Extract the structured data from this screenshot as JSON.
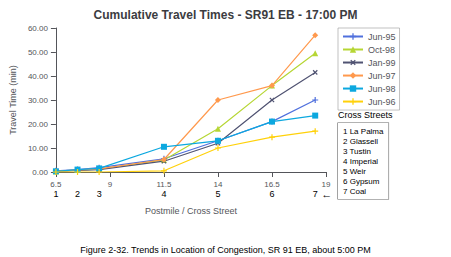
{
  "chart_data": {
    "type": "line",
    "title": "Cumulative Travel Times - SR91 EB - 17:00 PM",
    "xlabel": "Postmile / Cross Street",
    "ylabel": "Travel Time (min)",
    "caption": "Figure 2-32. Trends in Location of Congestion, SR 91 EB, about 5:00 PM",
    "xlim": [
      6.5,
      19
    ],
    "xticks": [
      6.5,
      9,
      11.5,
      14,
      16.5,
      19
    ],
    "ylim": [
      0,
      60
    ],
    "yticks": [
      {
        "value": 0,
        "label": "0.00"
      },
      {
        "value": 10,
        "label": "10.00"
      },
      {
        "value": 20,
        "label": "20.00"
      },
      {
        "value": 30,
        "label": "30.00"
      },
      {
        "value": 40,
        "label": "40.00"
      },
      {
        "value": 50,
        "label": "50.00"
      },
      {
        "value": 60,
        "label": "60.00"
      }
    ],
    "grid": false,
    "legend": "right",
    "cross_street_numbers": [
      {
        "x": 6.5,
        "text": "1"
      },
      {
        "x": 7.5,
        "text": "2"
      },
      {
        "x": 8.5,
        "text": "3"
      },
      {
        "x": 11.5,
        "text": "4"
      },
      {
        "x": 14.0,
        "text": "5"
      },
      {
        "x": 16.5,
        "text": "6"
      },
      {
        "x": 18.5,
        "text": "7"
      }
    ],
    "arrow": {
      "x": 18.5,
      "text": "←"
    },
    "cross_streets_title": "Cross Streets",
    "cross_streets": [
      "1 La Palma",
      "2 Glassell",
      "3 Tustin",
      "4 Imperial",
      "5 Weir",
      "6 Gypsum",
      "7 Coal"
    ],
    "series": [
      {
        "name": "Jun-95",
        "marker": "plus",
        "line_style": "solid",
        "x": [
          6.5,
          7.5,
          8.5,
          11.5,
          14.0,
          16.5,
          18.5
        ],
        "values": [
          0.5,
          1.0,
          1.8,
          5.5,
          13.0,
          21.0,
          30.0
        ]
      },
      {
        "name": "Oct-98",
        "marker": "triangle",
        "line_style": "solid",
        "x": [
          6.5,
          7.5,
          8.5,
          11.5,
          14.0,
          16.5,
          18.5
        ],
        "values": [
          0.2,
          0.8,
          1.2,
          5.0,
          18.0,
          36.0,
          49.5
        ]
      },
      {
        "name": "Jan-99",
        "marker": "x",
        "line_style": "solid",
        "x": [
          6.5,
          7.5,
          8.5,
          11.5,
          14.0,
          16.5,
          18.5
        ],
        "values": [
          0.2,
          0.7,
          1.0,
          4.5,
          12.0,
          30.0,
          41.5
        ]
      },
      {
        "name": "Jun-97",
        "marker": "diamond",
        "line_style": "solid",
        "x": [
          6.5,
          7.5,
          8.5,
          11.5,
          14.0,
          16.5,
          18.5
        ],
        "values": [
          0.3,
          0.9,
          1.3,
          5.2,
          30.0,
          36.0,
          57.0
        ]
      },
      {
        "name": "Jun-98",
        "marker": "square",
        "line_style": "solid",
        "x": [
          6.5,
          7.5,
          8.5,
          11.5,
          14.0,
          16.5,
          18.5
        ],
        "values": [
          0.3,
          1.0,
          1.5,
          10.5,
          13.0,
          21.0,
          23.5
        ]
      },
      {
        "name": "Jun-96",
        "marker": "plus",
        "line_style": "solid",
        "x": [
          6.5,
          7.5,
          8.5,
          11.5,
          14.0,
          16.5,
          18.5
        ],
        "values": [
          0.0,
          0.0,
          0.0,
          0.5,
          10.0,
          14.5,
          17.0
        ]
      }
    ]
  }
}
